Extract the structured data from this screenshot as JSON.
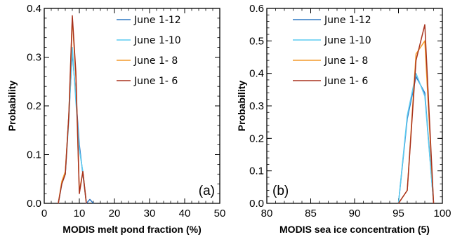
{
  "colors": {
    "June 1-12": "#2e78c4",
    "June 1-10": "#5ccbf0",
    "June 1- 8": "#f39a2b",
    "June 1- 6": "#a8321e"
  },
  "chart_data": [
    {
      "type": "line",
      "panel_label": "(a)",
      "xlabel": "MODIS melt pond fraction (%)",
      "ylabel": "Probability",
      "xlim": [
        0,
        50
      ],
      "ylim": [
        0,
        0.4
      ],
      "xticks": [
        "0",
        "10",
        "20",
        "30",
        "40",
        "50"
      ],
      "yticks": [
        "0.0",
        "0.1",
        "0.2",
        "0.3",
        "0.4"
      ],
      "legend_position": "top-right",
      "series": [
        {
          "name": "June 1-12",
          "x": [
            4,
            5,
            6,
            7,
            8,
            9,
            10,
            11,
            12,
            13,
            14
          ],
          "y": [
            0.0,
            0.04,
            0.06,
            0.18,
            0.31,
            0.22,
            0.12,
            0.06,
            0.0,
            0.008,
            0.0
          ]
        },
        {
          "name": "June 1-10",
          "x": [
            4,
            5,
            6,
            7,
            8,
            9,
            10,
            11,
            12
          ],
          "y": [
            0.0,
            0.04,
            0.06,
            0.17,
            0.32,
            0.21,
            0.11,
            0.065,
            0.0
          ]
        },
        {
          "name": "June 1- 8",
          "x": [
            4,
            5,
            6,
            7,
            8,
            9,
            10,
            11,
            12
          ],
          "y": [
            0.0,
            0.045,
            0.065,
            0.18,
            0.38,
            0.26,
            0.025,
            0.065,
            0.0
          ]
        },
        {
          "name": "June 1- 6",
          "x": [
            4,
            5,
            6,
            7,
            8,
            9,
            10,
            11,
            12
          ],
          "y": [
            0.0,
            0.04,
            0.06,
            0.18,
            0.385,
            0.27,
            0.02,
            0.065,
            0.0
          ]
        }
      ]
    },
    {
      "type": "line",
      "panel_label": "(b)",
      "xlabel": "MODIS sea ice concentration (5)",
      "ylabel": "Probability",
      "xlim": [
        80,
        100
      ],
      "ylim": [
        0,
        0.6
      ],
      "xticks": [
        "80",
        "85",
        "90",
        "95",
        "100"
      ],
      "yticks": [
        "0.0",
        "0.1",
        "0.2",
        "0.3",
        "0.4",
        "0.5",
        "0.6"
      ],
      "legend_position": "top-left",
      "series": [
        {
          "name": "June 1-12",
          "x": [
            95,
            96,
            97,
            98,
            99
          ],
          "y": [
            0.0,
            0.26,
            0.39,
            0.34,
            0.0
          ]
        },
        {
          "name": "June 1-10",
          "x": [
            95,
            96,
            97,
            98,
            99
          ],
          "y": [
            0.0,
            0.27,
            0.4,
            0.33,
            0.0
          ]
        },
        {
          "name": "June 1- 8",
          "x": [
            95,
            96,
            97,
            98,
            99
          ],
          "y": [
            0.0,
            0.04,
            0.46,
            0.5,
            0.0
          ]
        },
        {
          "name": "June 1- 6",
          "x": [
            95,
            96,
            97,
            98,
            99
          ],
          "y": [
            0.0,
            0.04,
            0.44,
            0.55,
            0.0
          ]
        }
      ]
    }
  ]
}
